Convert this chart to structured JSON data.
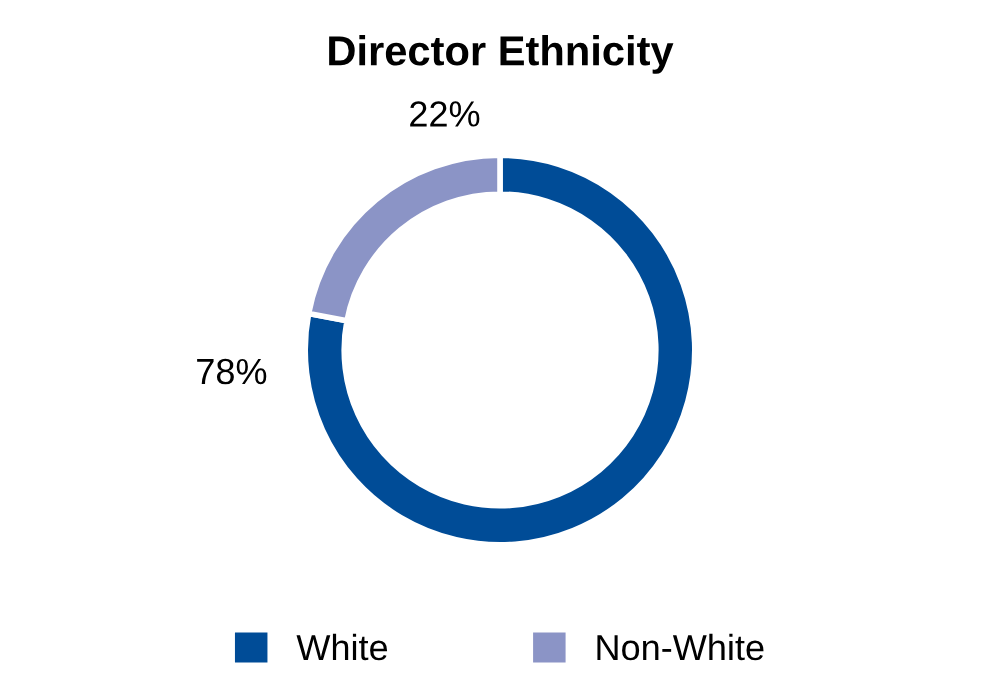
{
  "chart_data": {
    "type": "donut",
    "title": "Director Ethnicity",
    "categories": [
      "White",
      "Non-White"
    ],
    "values": [
      78,
      22
    ],
    "colors": [
      "#004c97",
      "#8b94c6"
    ],
    "value_labels": [
      "78%",
      "22%"
    ],
    "legend": "bottom"
  }
}
